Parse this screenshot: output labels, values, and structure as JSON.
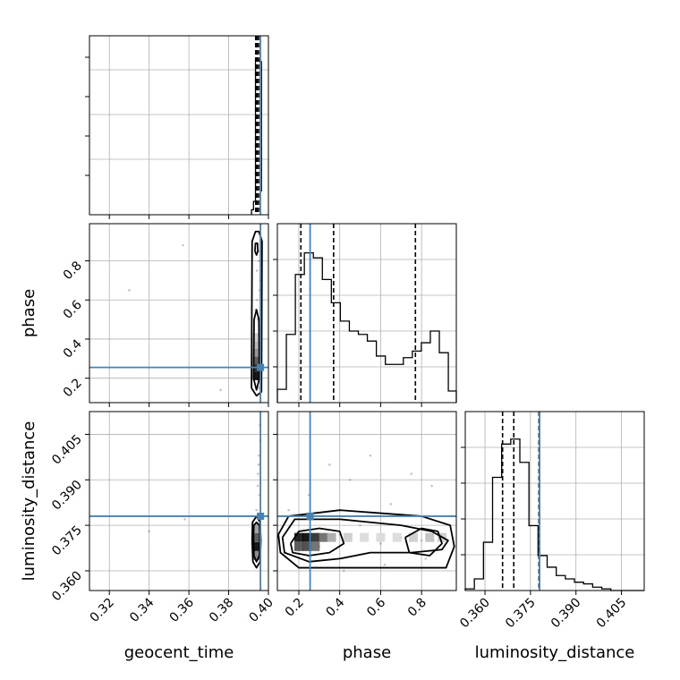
{
  "chart_data": {
    "type": "corner",
    "parameters": [
      "geocent_time",
      "phase",
      "luminosity_distance"
    ],
    "injection": {
      "geocent_time": 0.396,
      "phase": 0.255,
      "luminosity_distance": 0.378
    },
    "colors": {
      "injection": "#4682b4",
      "hist": "#000000",
      "grid": "#b0b0b0",
      "samples": "#7f7f7f"
    },
    "grid": true,
    "axes": {
      "geocent_time": {
        "range": [
          0.31,
          0.4
        ],
        "ticks": [
          "0.32",
          "0.34",
          "0.36",
          "0.38",
          "0.40"
        ],
        "tick_values": [
          0.32,
          0.34,
          0.36,
          0.38,
          0.4
        ]
      },
      "phase_x": {
        "range": [
          0.095,
          0.97
        ],
        "ticks": [
          "0.2",
          "0.4",
          "0.6",
          "0.8"
        ],
        "tick_values": [
          0.2,
          0.4,
          0.6,
          0.8
        ]
      },
      "phase_y": {
        "range": [
          0.075,
          0.99
        ],
        "ticks": [
          "0.2",
          "0.4",
          "0.6",
          "0.8"
        ],
        "tick_values": [
          0.2,
          0.4,
          0.6,
          0.8
        ]
      },
      "luminosity_distance": {
        "range": [
          0.3535,
          0.4125
        ],
        "ticks": [
          "0.360",
          "0.375",
          "0.390",
          "0.405"
        ],
        "tick_values": [
          0.36,
          0.375,
          0.39,
          0.405
        ]
      }
    },
    "marginals": {
      "geocent_time": {
        "hist_x": [
          0.3915,
          0.3925,
          0.3935,
          0.3945,
          0.3955,
          0.3965
        ],
        "hist_y": [
          0.03,
          0.08,
          0.93,
          0.93,
          0.92,
          0.14
        ],
        "quantiles": [
          0.3936,
          0.3943,
          0.3951
        ]
      },
      "phase": {
        "hist_x": [
          0.095,
          0.139,
          0.183,
          0.227,
          0.271,
          0.315,
          0.359,
          0.403,
          0.447,
          0.491,
          0.535,
          0.579,
          0.623,
          0.667,
          0.711,
          0.755,
          0.799,
          0.843,
          0.887,
          0.931,
          0.97
        ],
        "hist_y": [
          0.08,
          0.41,
          0.77,
          0.9,
          0.87,
          0.74,
          0.6,
          0.49,
          0.43,
          0.41,
          0.37,
          0.28,
          0.23,
          0.23,
          0.27,
          0.31,
          0.36,
          0.43,
          0.3,
          0.07
        ],
        "quantiles": [
          0.21,
          0.37,
          0.77
        ]
      },
      "luminosity_distance": {
        "hist_x": [
          0.3535,
          0.3565,
          0.3595,
          0.3625,
          0.3655,
          0.3685,
          0.3715,
          0.3745,
          0.3775,
          0.3805,
          0.3835,
          0.3865,
          0.3895,
          0.3925,
          0.3955,
          0.3985,
          0.4015,
          0.4045,
          0.4075,
          0.4105,
          0.4125
        ],
        "hist_y": [
          0.01,
          0.07,
          0.29,
          0.68,
          0.88,
          0.91,
          0.77,
          0.39,
          0.21,
          0.14,
          0.09,
          0.07,
          0.05,
          0.04,
          0.02,
          0.01,
          0.0,
          0.0,
          0.0,
          0.0
        ],
        "quantiles": [
          0.3658,
          0.3695,
          0.3778
        ]
      }
    },
    "joint": {
      "phase_vs_geocent_time": {
        "samples": [
          [
            0.3945,
            0.25
          ],
          [
            0.394,
            0.35
          ],
          [
            0.395,
            0.3
          ],
          [
            0.396,
            0.45
          ],
          [
            0.3935,
            0.55
          ],
          [
            0.3948,
            0.2
          ],
          [
            0.3955,
            0.65
          ],
          [
            0.3942,
            0.75
          ],
          [
            0.395,
            0.85
          ],
          [
            0.3962,
            0.92
          ],
          [
            0.3938,
            0.4
          ],
          [
            0.3953,
            0.15
          ],
          [
            0.3947,
            0.5
          ],
          [
            0.3941,
            0.28
          ],
          [
            0.3958,
            0.7
          ],
          [
            0.3944,
            0.6
          ],
          [
            0.3937,
            0.22
          ],
          [
            0.3951,
            0.8
          ],
          [
            0.3963,
            0.33
          ],
          [
            0.3949,
            0.42
          ],
          [
            0.357,
            0.88
          ],
          [
            0.33,
            0.65
          ],
          [
            0.376,
            0.14
          ]
        ],
        "contours": [
          [
            [
              0.3925,
              0.2
            ],
            [
              0.3928,
              0.5
            ],
            [
              0.394,
              0.55
            ],
            [
              0.3952,
              0.5
            ],
            [
              0.3955,
              0.2
            ],
            [
              0.394,
              0.14
            ],
            [
              0.3925,
              0.2
            ]
          ],
          [
            [
              0.3915,
              0.15
            ],
            [
              0.3918,
              0.9
            ],
            [
              0.3935,
              0.95
            ],
            [
              0.3952,
              0.95
            ],
            [
              0.3968,
              0.9
            ],
            [
              0.3965,
              0.13
            ],
            [
              0.394,
              0.11
            ],
            [
              0.3915,
              0.15
            ]
          ],
          [
            [
              0.3932,
              0.85
            ],
            [
              0.3935,
              0.89
            ],
            [
              0.3945,
              0.89
            ],
            [
              0.3947,
              0.85
            ],
            [
              0.394,
              0.83
            ],
            [
              0.3932,
              0.85
            ]
          ]
        ],
        "density_cells": [
          [
            0.394,
            0.21,
            1.0
          ],
          [
            0.394,
            0.25,
            0.9
          ],
          [
            0.394,
            0.29,
            0.7
          ],
          [
            0.394,
            0.33,
            0.45
          ],
          [
            0.394,
            0.37,
            0.3
          ],
          [
            0.394,
            0.41,
            0.2
          ]
        ]
      },
      "luminosity_distance_vs_geocent_time": {
        "samples": [
          [
            0.3945,
            0.37
          ],
          [
            0.395,
            0.375
          ],
          [
            0.394,
            0.38
          ],
          [
            0.3955,
            0.385
          ],
          [
            0.3948,
            0.392
          ],
          [
            0.3952,
            0.398
          ],
          [
            0.396,
            0.403
          ],
          [
            0.3943,
            0.365
          ],
          [
            0.3957,
            0.408
          ],
          [
            0.3947,
            0.388
          ],
          [
            0.3951,
            0.395
          ],
          [
            0.358,
            0.377
          ],
          [
            0.34,
            0.373
          ]
        ],
        "contours": [
          [
            [
              0.3925,
              0.372
            ],
            [
              0.3927,
              0.375
            ],
            [
              0.394,
              0.376
            ],
            [
              0.3955,
              0.375
            ],
            [
              0.3957,
              0.372
            ],
            [
              0.3955,
              0.365
            ],
            [
              0.394,
              0.363
            ],
            [
              0.3927,
              0.365
            ],
            [
              0.3925,
              0.372
            ]
          ],
          [
            [
              0.3918,
              0.37
            ],
            [
              0.392,
              0.376
            ],
            [
              0.394,
              0.378
            ],
            [
              0.3958,
              0.376
            ],
            [
              0.3962,
              0.37
            ],
            [
              0.3958,
              0.363
            ],
            [
              0.394,
              0.361
            ],
            [
              0.3922,
              0.363
            ],
            [
              0.3918,
              0.37
            ]
          ]
        ],
        "density_cells": [
          [
            0.394,
            0.368,
            1.0
          ],
          [
            0.394,
            0.371,
            0.7
          ],
          [
            0.394,
            0.374,
            0.4
          ],
          [
            0.394,
            0.365,
            0.5
          ]
        ]
      },
      "luminosity_distance_vs_phase": {
        "samples": [
          [
            0.2,
            0.37
          ],
          [
            0.3,
            0.368
          ],
          [
            0.4,
            0.372
          ],
          [
            0.5,
            0.375
          ],
          [
            0.6,
            0.369
          ],
          [
            0.7,
            0.371
          ],
          [
            0.8,
            0.37
          ],
          [
            0.9,
            0.372
          ],
          [
            0.25,
            0.385
          ],
          [
            0.45,
            0.39
          ],
          [
            0.65,
            0.382
          ],
          [
            0.85,
            0.388
          ],
          [
            0.35,
            0.395
          ],
          [
            0.55,
            0.398
          ],
          [
            0.75,
            0.392
          ],
          [
            0.15,
            0.38
          ],
          [
            0.95,
            0.378
          ],
          [
            0.42,
            0.36
          ],
          [
            0.62,
            0.362
          ],
          [
            0.82,
            0.364
          ]
        ],
        "contours": [
          [
            [
              0.16,
              0.369
            ],
            [
              0.2,
              0.373
            ],
            [
              0.3,
              0.374
            ],
            [
              0.4,
              0.373
            ],
            [
              0.42,
              0.369
            ],
            [
              0.35,
              0.366
            ],
            [
              0.25,
              0.365
            ],
            [
              0.17,
              0.366
            ],
            [
              0.16,
              0.369
            ]
          ],
          [
            [
              0.12,
              0.371
            ],
            [
              0.18,
              0.377
            ],
            [
              0.4,
              0.377
            ],
            [
              0.55,
              0.376
            ],
            [
              0.7,
              0.375
            ],
            [
              0.85,
              0.373
            ],
            [
              0.93,
              0.37
            ],
            [
              0.9,
              0.367
            ],
            [
              0.75,
              0.366
            ],
            [
              0.55,
              0.366
            ],
            [
              0.4,
              0.364
            ],
            [
              0.25,
              0.363
            ],
            [
              0.13,
              0.366
            ],
            [
              0.12,
              0.371
            ]
          ],
          [
            [
              0.1,
              0.372
            ],
            [
              0.15,
              0.378
            ],
            [
              0.4,
              0.38
            ],
            [
              0.6,
              0.379
            ],
            [
              0.8,
              0.378
            ],
            [
              0.94,
              0.375
            ],
            [
              0.96,
              0.368
            ],
            [
              0.92,
              0.361
            ],
            [
              0.7,
              0.361
            ],
            [
              0.4,
              0.361
            ],
            [
              0.2,
              0.361
            ],
            [
              0.11,
              0.366
            ],
            [
              0.1,
              0.372
            ]
          ],
          [
            [
              0.72,
              0.371
            ],
            [
              0.8,
              0.374
            ],
            [
              0.88,
              0.373
            ],
            [
              0.9,
              0.369
            ],
            [
              0.84,
              0.365
            ],
            [
              0.74,
              0.366
            ],
            [
              0.72,
              0.371
            ]
          ]
        ],
        "density_cells": [
          [
            0.2,
            0.371,
            0.95
          ],
          [
            0.24,
            0.371,
            1.0
          ],
          [
            0.28,
            0.371,
            0.85
          ],
          [
            0.32,
            0.371,
            0.6
          ],
          [
            0.2,
            0.368,
            0.7
          ],
          [
            0.24,
            0.368,
            0.75
          ],
          [
            0.28,
            0.368,
            0.6
          ],
          [
            0.36,
            0.371,
            0.35
          ],
          [
            0.44,
            0.371,
            0.2
          ],
          [
            0.52,
            0.371,
            0.15
          ],
          [
            0.6,
            0.371,
            0.15
          ],
          [
            0.68,
            0.371,
            0.15
          ],
          [
            0.76,
            0.371,
            0.2
          ],
          [
            0.84,
            0.371,
            0.25
          ],
          [
            0.9,
            0.371,
            0.2
          ]
        ]
      }
    }
  }
}
